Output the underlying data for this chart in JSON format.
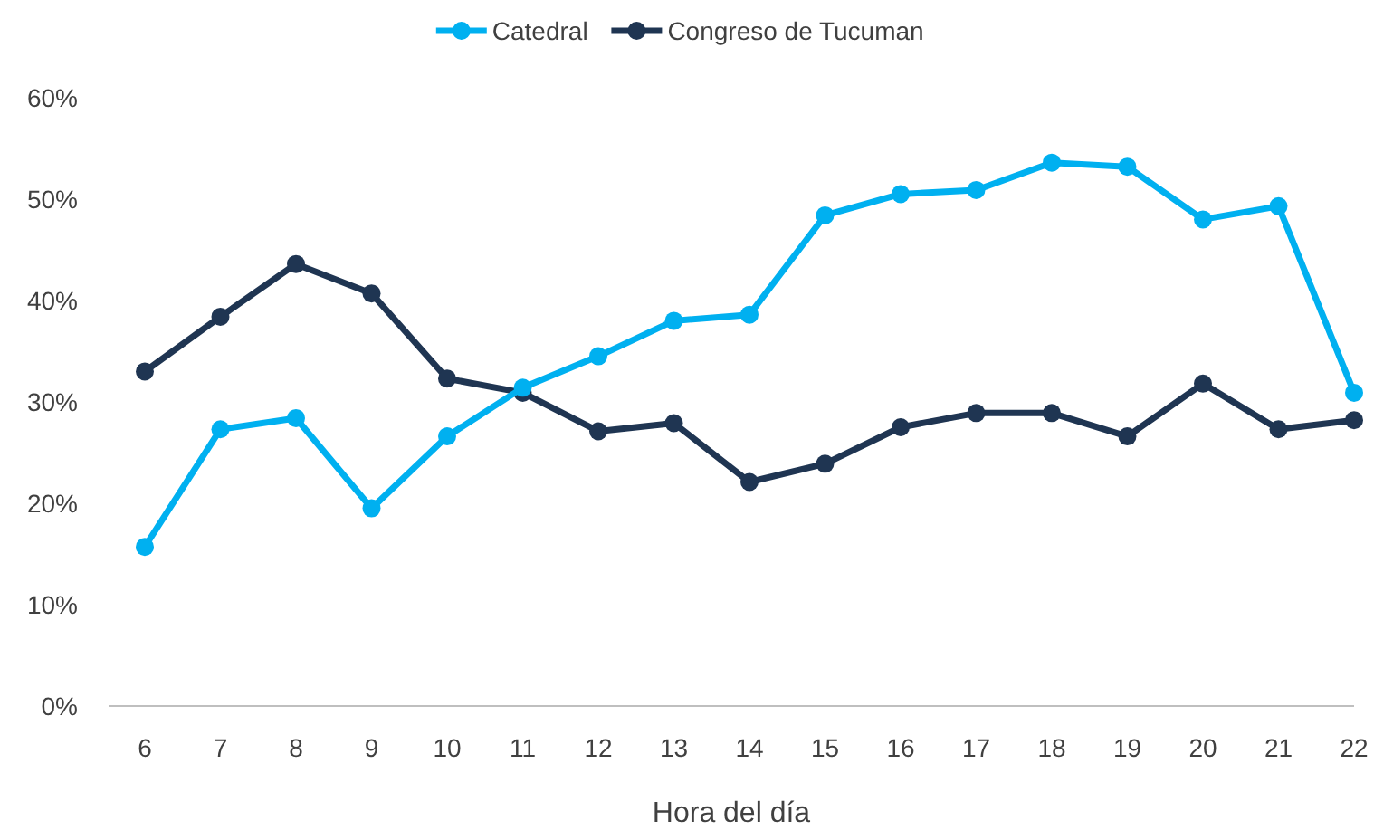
{
  "chart_data": {
    "type": "line",
    "xlabel": "Hora del día",
    "categories": [
      "6",
      "7",
      "8",
      "9",
      "10",
      "11",
      "12",
      "13",
      "14",
      "15",
      "16",
      "17",
      "18",
      "19",
      "20",
      "21",
      "22"
    ],
    "series": [
      {
        "name": "Catedral",
        "color": "#00b0f0",
        "values": [
          15.7,
          27.3,
          28.4,
          19.5,
          26.6,
          31.4,
          34.5,
          38.0,
          38.6,
          48.4,
          50.5,
          50.9,
          53.6,
          53.2,
          48.0,
          49.3,
          30.9
        ]
      },
      {
        "name": "Congreso de Tucuman",
        "color": "#1f3552",
        "values": [
          33.0,
          38.4,
          43.6,
          40.7,
          32.3,
          30.9,
          27.1,
          27.9,
          22.1,
          23.9,
          27.5,
          28.9,
          28.9,
          26.6,
          31.8,
          27.3,
          28.2
        ]
      }
    ],
    "ylim": [
      0,
      60
    ],
    "yticks": [
      {
        "value": 0,
        "label": "0%"
      },
      {
        "value": 10,
        "label": "10%"
      },
      {
        "value": 20,
        "label": "20%"
      },
      {
        "value": 30,
        "label": "30%"
      },
      {
        "value": 40,
        "label": "40%"
      },
      {
        "value": 50,
        "label": "50%"
      },
      {
        "value": 60,
        "label": "60%"
      }
    ],
    "grid": false,
    "legend": "top",
    "marker": "circle",
    "line_style": "solid"
  }
}
